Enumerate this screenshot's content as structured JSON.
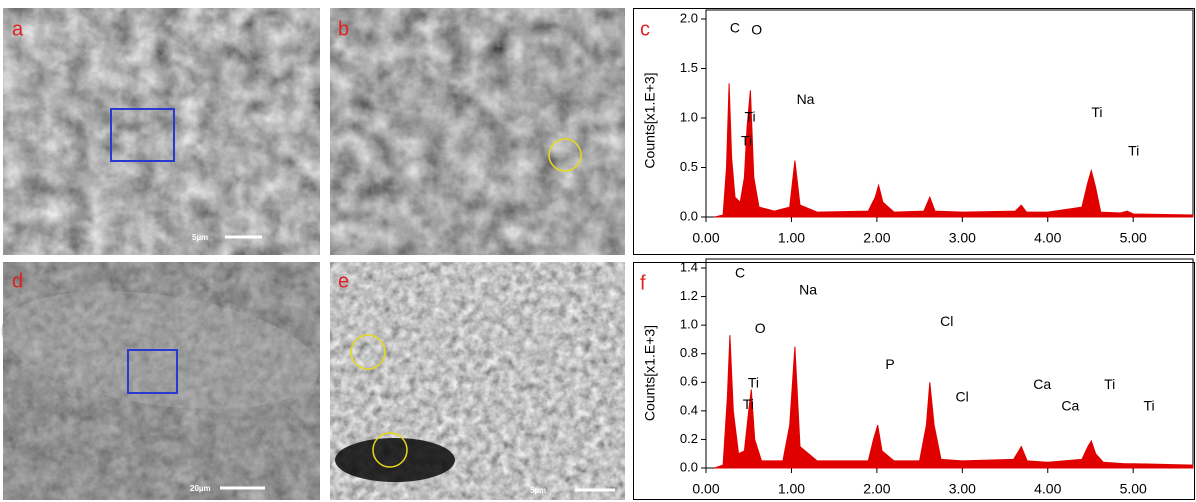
{
  "panels": [
    {
      "label": "a",
      "scale_bar": "5µm"
    },
    {
      "label": "b"
    },
    {
      "label": "d",
      "scale_bar": "20µm"
    },
    {
      "label": "e",
      "scale_bar": "5µm"
    }
  ],
  "chart_data": [
    {
      "type": "area",
      "title": "c",
      "y_label": "Counts[x1.E+3]",
      "x": [
        0.1,
        0.2,
        0.24,
        0.27,
        0.3,
        0.34,
        0.4,
        0.45,
        0.48,
        0.52,
        0.56,
        0.62,
        0.8,
        0.98,
        1.04,
        1.1,
        1.3,
        1.9,
        1.98,
        2.02,
        2.07,
        2.2,
        2.55,
        2.62,
        2.68,
        3.0,
        3.62,
        3.69,
        3.75,
        4.0,
        4.4,
        4.47,
        4.51,
        4.56,
        4.62,
        4.85,
        4.93,
        5.0,
        5.7
      ],
      "series": [
        {
          "color": "#e00000",
          "values": [
            0,
            0.02,
            0.5,
            1.35,
            0.6,
            0.2,
            0.15,
            0.4,
            0.9,
            1.28,
            0.4,
            0.1,
            0.06,
            0.1,
            0.57,
            0.12,
            0.05,
            0.06,
            0.2,
            0.32,
            0.15,
            0.05,
            0.06,
            0.2,
            0.06,
            0.05,
            0.06,
            0.12,
            0.05,
            0.05,
            0.1,
            0.35,
            0.47,
            0.3,
            0.05,
            0.04,
            0.06,
            0.03,
            0.02
          ]
        }
      ],
      "xlim": [
        0,
        5.7
      ],
      "ylim": [
        0,
        2.0
      ],
      "xticks": [
        {
          "value": 0,
          "label": "0.00"
        },
        {
          "value": 1,
          "label": "1.00"
        },
        {
          "value": 2,
          "label": "2.00"
        },
        {
          "value": 3,
          "label": "3.00"
        },
        {
          "value": 4,
          "label": "4.00"
        },
        {
          "value": 5,
          "label": "5.00"
        }
      ],
      "yticks": [
        {
          "value": 0,
          "label": "0.0"
        },
        0.5,
        {
          "value": 1,
          "label": "1.0"
        },
        1.5,
        {
          "value": 2,
          "label": "2.0"
        }
      ],
      "annotations": [
        {
          "text": "C",
          "x": 0.28,
          "y": 1.9
        },
        {
          "text": "O",
          "x": 0.53,
          "y": 1.88
        },
        {
          "text": "Ti",
          "x": 0.45,
          "y": 1.0
        },
        {
          "text": "Ti",
          "x": 0.41,
          "y": 0.76
        },
        {
          "text": "Na",
          "x": 1.06,
          "y": 1.18
        },
        {
          "text": "Ti",
          "x": 4.51,
          "y": 1.05
        },
        {
          "text": "Ti",
          "x": 4.94,
          "y": 0.66
        }
      ]
    },
    {
      "type": "area",
      "title": "f",
      "y_label": "Counts[x1.E+3]",
      "x": [
        0.1,
        0.2,
        0.25,
        0.28,
        0.32,
        0.38,
        0.45,
        0.5,
        0.53,
        0.57,
        0.65,
        0.9,
        0.98,
        1.04,
        1.1,
        1.3,
        1.9,
        1.96,
        2.01,
        2.06,
        2.2,
        2.5,
        2.58,
        2.62,
        2.67,
        2.75,
        3.0,
        3.6,
        3.69,
        3.76,
        4.0,
        4.4,
        4.47,
        4.51,
        4.56,
        4.65,
        4.9,
        5.0,
        5.7
      ],
      "series": [
        {
          "color": "#e00000",
          "values": [
            0,
            0.02,
            0.5,
            0.93,
            0.4,
            0.1,
            0.12,
            0.4,
            0.55,
            0.2,
            0.05,
            0.05,
            0.3,
            0.85,
            0.15,
            0.05,
            0.05,
            0.2,
            0.3,
            0.12,
            0.05,
            0.05,
            0.3,
            0.6,
            0.3,
            0.06,
            0.05,
            0.06,
            0.15,
            0.05,
            0.04,
            0.06,
            0.15,
            0.19,
            0.1,
            0.04,
            0.03,
            0.03,
            0.02
          ]
        }
      ],
      "xlim": [
        0,
        5.7
      ],
      "ylim": [
        0,
        1.4
      ],
      "xticks": [
        {
          "value": 0,
          "label": "0.00"
        },
        {
          "value": 1,
          "label": "1.00"
        },
        {
          "value": 2,
          "label": "2.00"
        },
        {
          "value": 3,
          "label": "3.00"
        },
        {
          "value": 4,
          "label": "4.00"
        },
        {
          "value": 5,
          "label": "5.00"
        }
      ],
      "yticks": [
        {
          "value": 0,
          "label": "0.0"
        },
        0.2,
        0.4,
        0.6,
        0.8,
        {
          "value": 1,
          "label": "1.0"
        },
        1.2,
        1.4
      ],
      "annotations": [
        {
          "text": "C",
          "x": 0.34,
          "y": 1.36
        },
        {
          "text": "Na",
          "x": 1.09,
          "y": 1.24
        },
        {
          "text": "O",
          "x": 0.57,
          "y": 0.97
        },
        {
          "text": "Ti",
          "x": 0.49,
          "y": 0.59
        },
        {
          "text": "Ti",
          "x": 0.43,
          "y": 0.44
        },
        {
          "text": "P",
          "x": 2.1,
          "y": 0.72
        },
        {
          "text": "Cl",
          "x": 2.74,
          "y": 1.02
        },
        {
          "text": "Cl",
          "x": 2.92,
          "y": 0.49
        },
        {
          "text": "Ca",
          "x": 3.83,
          "y": 0.58
        },
        {
          "text": "Ca",
          "x": 4.16,
          "y": 0.43
        },
        {
          "text": "Ti",
          "x": 4.66,
          "y": 0.58
        },
        {
          "text": "Ti",
          "x": 5.12,
          "y": 0.43
        }
      ]
    }
  ]
}
